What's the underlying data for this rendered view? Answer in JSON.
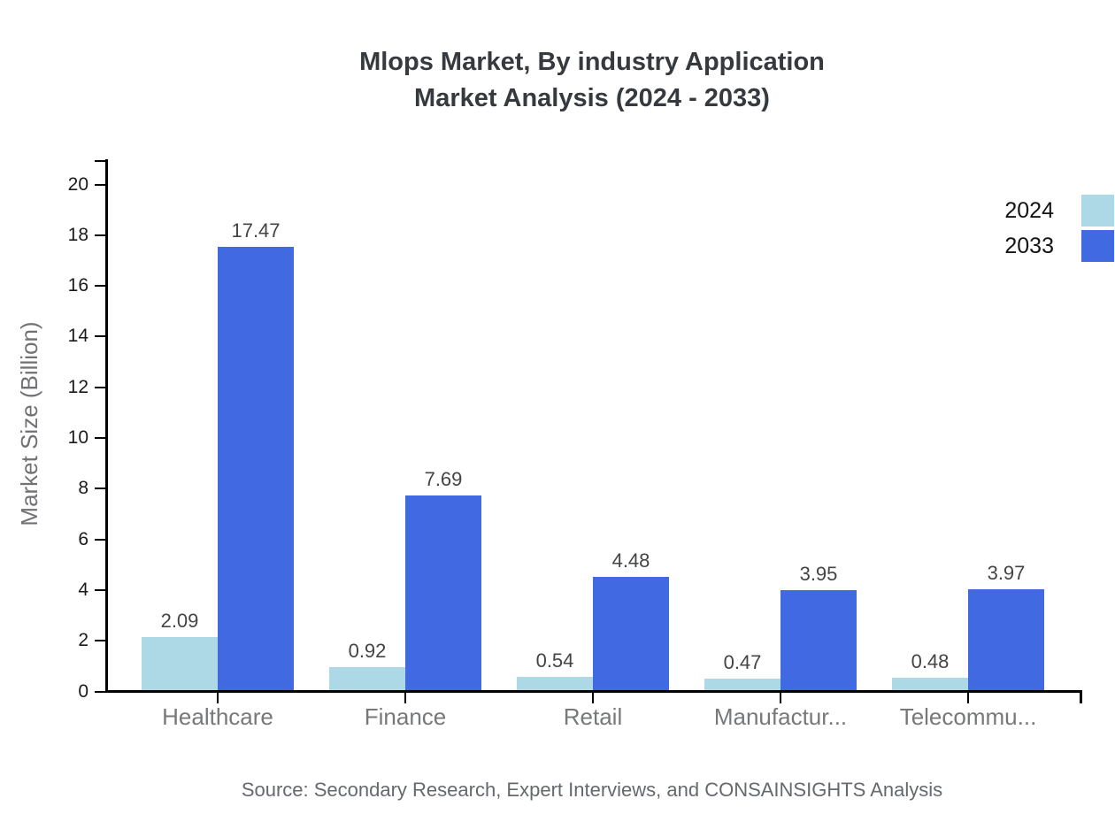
{
  "title": {
    "line1": "Mlops Market, By industry Application",
    "line2": "Market Analysis (2024 - 2033)"
  },
  "source": {
    "text": "Source: Secondary Research, Expert Interviews, and CONSAINSIGHTS Analysis"
  },
  "legend": {
    "items": [
      {
        "label": "2024",
        "color": "#ADD8E6"
      },
      {
        "label": "2033",
        "color": "#4169E1"
      }
    ]
  },
  "colors": {
    "series_2024": "#ADD8E6",
    "series_2033": "#4169E1",
    "axis": "#000000",
    "ytick_label": "#1a1a1a",
    "category_label": "#76787a",
    "value_label": "#444444",
    "title": "#36393e",
    "source": "#65696e",
    "ylabel": "#6f7175",
    "legend_text": "#141414"
  },
  "chart_data": {
    "type": "bar",
    "title": "Mlops Market, By industry Application Market Analysis (2024 - 2033)",
    "categories": [
      "Healthcare",
      "Finance",
      "Retail",
      "Manufactur...",
      "Telecommu..."
    ],
    "series": [
      {
        "name": "2024",
        "color": "#ADD8E6",
        "values": [
          2.09,
          0.92,
          0.54,
          0.47,
          0.48
        ]
      },
      {
        "name": "2033",
        "color": "#4169E1",
        "values": [
          17.47,
          7.69,
          4.48,
          3.95,
          3.97
        ]
      }
    ],
    "xlabel": "",
    "ylabel": "Market Size (Billion)",
    "ylim": [
      0,
      21
    ],
    "ytick_interval": 2,
    "ytick_labels": [
      "0",
      "2",
      "4",
      "6",
      "8",
      "10",
      "12",
      "14",
      "16",
      "18",
      "20"
    ],
    "grid": false,
    "legend_position": "top-right",
    "bar_value_labels": true
  }
}
